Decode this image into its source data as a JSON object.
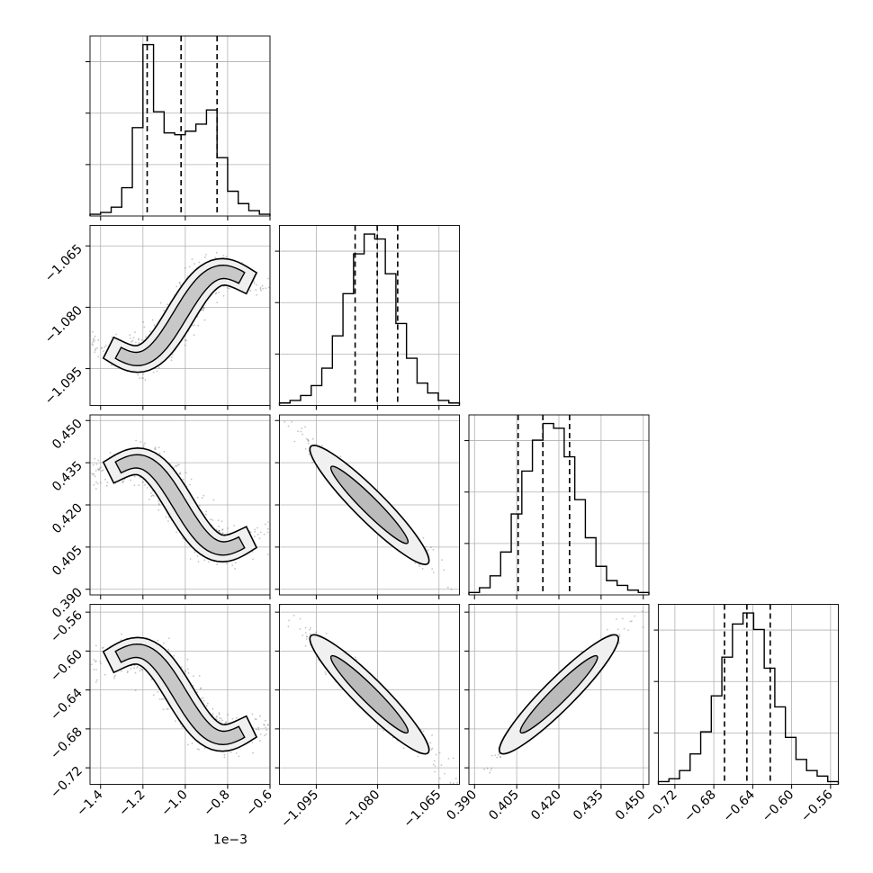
{
  "chart_data": {
    "type": "corner",
    "title": "",
    "parameters": [
      {
        "range": [
          -1.45,
          -0.6
        ],
        "ticks": [
          -1.4,
          -1.2,
          -1.0,
          -0.8,
          -0.6
        ],
        "tick_labels": [
          "−1.4",
          "−1.2",
          "−1.0",
          "−0.8",
          "−0.6"
        ],
        "offset_label": "1e−3",
        "quantiles": [
          -1.18,
          -1.02,
          -0.85
        ]
      },
      {
        "range": [
          -1.104,
          -1.06
        ],
        "ticks": [
          -1.095,
          -1.08,
          -1.065
        ],
        "tick_labels": [
          "−1.095",
          "−1.080",
          "−1.065"
        ],
        "offset_label": "",
        "quantiles": [
          -1.0855,
          -1.0801,
          -1.0751
        ]
      },
      {
        "range": [
          0.388,
          0.452
        ],
        "ticks": [
          0.39,
          0.405,
          0.42,
          0.435,
          0.45
        ],
        "tick_labels": [
          "0.390",
          "0.405",
          "0.420",
          "0.435",
          "0.450"
        ],
        "offset_label": "",
        "quantiles": [
          0.4055,
          0.4143,
          0.4238
        ]
      },
      {
        "range": [
          -0.737,
          -0.552
        ],
        "ticks": [
          -0.72,
          -0.68,
          -0.64,
          -0.6,
          -0.56
        ],
        "tick_labels": [
          "−0.72",
          "−0.68",
          "−0.64",
          "−0.60",
          "−0.56"
        ],
        "offset_label": "",
        "quantiles": [
          -0.669,
          -0.646,
          -0.622
        ]
      }
    ],
    "histograms": [
      {
        "bins": [
          -1.45,
          -0.6
        ],
        "counts": [
          1,
          2,
          5,
          16,
          50,
          97,
          59,
          47,
          46,
          48,
          52,
          60,
          33,
          14,
          7,
          3,
          1
        ]
      },
      {
        "bins": [
          -1.104,
          -1.06
        ],
        "counts": [
          1,
          2,
          4,
          8,
          15,
          28,
          45,
          61,
          69,
          67,
          53,
          33,
          19,
          9,
          5,
          2,
          1
        ]
      },
      {
        "bins": [
          0.388,
          0.452
        ],
        "counts": [
          1,
          3,
          8,
          18,
          34,
          52,
          65,
          72,
          70,
          58,
          40,
          24,
          12,
          6,
          4,
          2,
          1
        ]
      },
      {
        "bins": [
          -0.737,
          -0.552
        ],
        "counts": [
          1,
          2,
          5,
          11,
          19,
          32,
          46,
          58,
          62,
          56,
          42,
          28,
          17,
          9,
          5,
          3,
          1
        ]
      }
    ],
    "pair_relations": [
      {
        "i": 1,
        "j": 0,
        "shape": "s-curve",
        "sign": 1
      },
      {
        "i": 2,
        "j": 0,
        "shape": "s-curve",
        "sign": -1
      },
      {
        "i": 2,
        "j": 1,
        "shape": "linear",
        "sign": -1,
        "rho": 0.97
      },
      {
        "i": 3,
        "j": 0,
        "shape": "s-curve",
        "sign": -1
      },
      {
        "i": 3,
        "j": 1,
        "shape": "linear",
        "sign": -1,
        "rho": 0.97
      },
      {
        "i": 3,
        "j": 2,
        "shape": "linear",
        "sign": 1,
        "rho": 0.98
      }
    ],
    "colors": {
      "lines": "#000000",
      "points": "#555555",
      "grid": "#b0b0b0"
    },
    "grid": true,
    "legend": "none"
  }
}
